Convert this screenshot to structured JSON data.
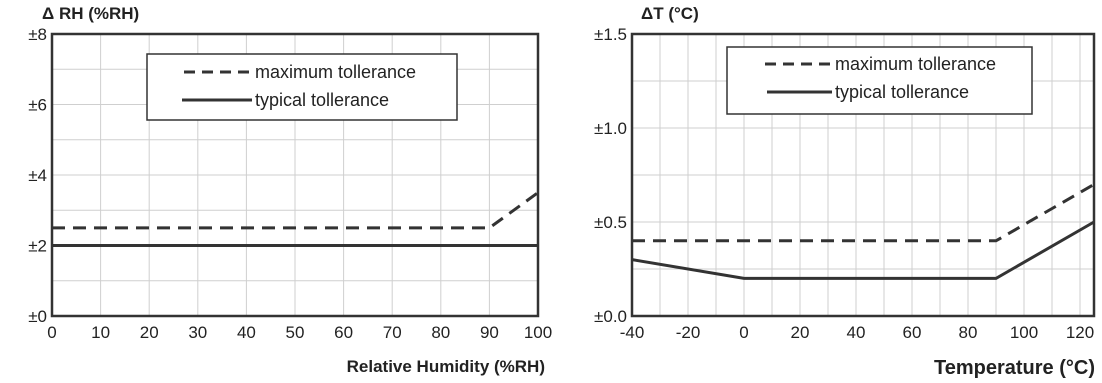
{
  "chart_data": [
    {
      "type": "line",
      "ylabel": "Δ RH (%RH)",
      "xlabel": "Relative Humidity (%RH)",
      "xlim": [
        0,
        100
      ],
      "ylim": [
        0,
        8
      ],
      "x_ticks": [
        "0",
        "10",
        "20",
        "30",
        "40",
        "50",
        "60",
        "70",
        "80",
        "90",
        "100"
      ],
      "y_ticks": [
        "±0",
        "±2",
        "±4",
        "±6",
        "±8"
      ],
      "grid": true,
      "legend_position": "top-center",
      "series": [
        {
          "name": "maximum tollerance",
          "style": "dashed",
          "x": [
            0,
            90,
            100
          ],
          "y": [
            2.5,
            2.5,
            3.5
          ]
        },
        {
          "name": "typical tollerance",
          "style": "solid",
          "x": [
            0,
            100
          ],
          "y": [
            2,
            2
          ]
        }
      ]
    },
    {
      "type": "line",
      "ylabel": "ΔT (°C)",
      "xlabel": "Temperature (°C)",
      "xlim": [
        -40,
        125
      ],
      "ylim": [
        0,
        1.5
      ],
      "x_ticks": [
        "-40",
        "-20",
        "0",
        "20",
        "40",
        "60",
        "80",
        "100",
        "120"
      ],
      "y_ticks": [
        "±0.0",
        "±0.5",
        "±1.0",
        "±1.5"
      ],
      "grid": true,
      "legend_position": "top-center",
      "series": [
        {
          "name": "maximum tollerance",
          "style": "dashed",
          "x": [
            -40,
            90,
            125
          ],
          "y": [
            0.4,
            0.4,
            0.7
          ]
        },
        {
          "name": "typical tollerance",
          "style": "solid",
          "x": [
            -40,
            0,
            90,
            125
          ],
          "y": [
            0.3,
            0.2,
            0.2,
            0.5
          ]
        }
      ]
    }
  ]
}
